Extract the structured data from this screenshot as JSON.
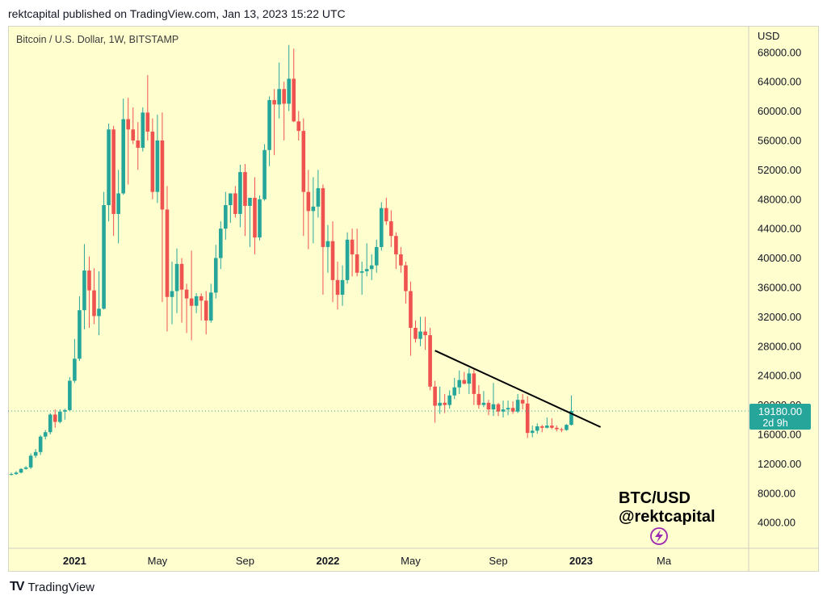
{
  "header": {
    "text": "rektcapital published on TradingView.com, Jan 13, 2023 15:22 UTC"
  },
  "footer": {
    "brand": "TradingView",
    "logo_icon": "tradingview-logo-icon"
  },
  "colors": {
    "up": "#26a69a",
    "down": "#ef5350",
    "background": "#fffecf",
    "price_tag": "#26a69a",
    "trendline": "#000000"
  },
  "chart_data": {
    "type": "candlestick",
    "title": "Bitcoin / U.S. Dollar, 1W, BITSTAMP",
    "currency_label": "USD",
    "yticks": [
      4000,
      8000,
      12000,
      16000,
      20000,
      24000,
      28000,
      32000,
      36000,
      40000,
      44000,
      48000,
      52000,
      56000,
      60000,
      64000,
      68000
    ],
    "ytick_labels": [
      "4000.00",
      "8000.00",
      "12000.00",
      "16000.00",
      "20000.00",
      "24000.00",
      "28000.00",
      "32000.00",
      "36000.00",
      "40000.00",
      "44000.00",
      "48000.00",
      "52000.00",
      "56000.00",
      "60000.00",
      "64000.00",
      "68000.00"
    ],
    "ylim": [
      500,
      71600
    ],
    "x_tick_labels": [
      {
        "label": "2021",
        "bold": true,
        "index": 13
      },
      {
        "label": "May",
        "bold": false,
        "index": 30
      },
      {
        "label": "Sep",
        "bold": false,
        "index": 48
      },
      {
        "label": "2022",
        "bold": true,
        "index": 65
      },
      {
        "label": "May",
        "bold": false,
        "index": 82
      },
      {
        "label": "Sep",
        "bold": false,
        "index": 100
      },
      {
        "label": "2023",
        "bold": true,
        "index": 117
      },
      {
        "label": "Ma",
        "bold": false,
        "index": 134
      }
    ],
    "last_price": {
      "value": 19180,
      "label": "19180.00",
      "countdown": "2d 9h"
    },
    "trendline": {
      "start": {
        "index": 87,
        "price": 27400
      },
      "end": {
        "index": 121,
        "price": 17000
      }
    },
    "annotation": {
      "line1": "BTC/USD",
      "line2": "@rektcapital",
      "icon": "lightning-badge-icon"
    },
    "candles": [
      [
        10600,
        10800,
        10400,
        10600
      ],
      [
        10600,
        11000,
        10500,
        10800
      ],
      [
        10800,
        11400,
        10700,
        11300
      ],
      [
        11300,
        11700,
        11200,
        11500
      ],
      [
        11500,
        13400,
        11300,
        13100
      ],
      [
        13100,
        14000,
        12800,
        13600
      ],
      [
        13600,
        15900,
        13200,
        15700
      ],
      [
        15700,
        16600,
        15300,
        16300
      ],
      [
        16300,
        18900,
        16000,
        18700
      ],
      [
        18700,
        19400,
        16900,
        17700
      ],
      [
        17700,
        19400,
        17500,
        19100
      ],
      [
        19100,
        19500,
        18000,
        19300
      ],
      [
        19300,
        23800,
        19200,
        23300
      ],
      [
        23300,
        29000,
        23000,
        26300
      ],
      [
        26300,
        34800,
        26000,
        32900
      ],
      [
        32900,
        41900,
        30300,
        38300
      ],
      [
        38300,
        40200,
        30500,
        35600
      ],
      [
        35600,
        38600,
        31000,
        32100
      ],
      [
        32100,
        38200,
        29500,
        33100
      ],
      [
        33100,
        49000,
        33000,
        47200
      ],
      [
        47200,
        58300,
        45000,
        57500
      ],
      [
        57500,
        58000,
        43000,
        46000
      ],
      [
        46000,
        52000,
        42000,
        48800
      ],
      [
        48800,
        61700,
        48600,
        58900
      ],
      [
        58900,
        61800,
        50000,
        57500
      ],
      [
        57500,
        60500,
        55500,
        56000
      ],
      [
        56000,
        58500,
        52000,
        55000
      ],
      [
        55000,
        60500,
        54500,
        59800
      ],
      [
        59800,
        64900,
        56000,
        57200
      ],
      [
        57200,
        59000,
        48000,
        49000
      ],
      [
        49000,
        59500,
        47500,
        56000
      ],
      [
        56000,
        59800,
        34000,
        46600
      ],
      [
        46600,
        49800,
        30000,
        34700
      ],
      [
        34700,
        39500,
        31000,
        35500
      ],
      [
        35500,
        41300,
        32500,
        39200
      ],
      [
        39200,
        40000,
        31200,
        35700
      ],
      [
        35700,
        36500,
        29800,
        34500
      ],
      [
        34500,
        41000,
        28800,
        33500
      ],
      [
        33500,
        35200,
        32500,
        34800
      ],
      [
        34800,
        35200,
        31500,
        34200
      ],
      [
        34200,
        35500,
        29600,
        31500
      ],
      [
        31500,
        36500,
        31200,
        35300
      ],
      [
        35300,
        41800,
        34500,
        40000
      ],
      [
        40000,
        45000,
        38500,
        44000
      ],
      [
        44000,
        49000,
        42500,
        47200
      ],
      [
        47200,
        48500,
        44800,
        48800
      ],
      [
        48800,
        49800,
        45500,
        46000
      ],
      [
        46000,
        52700,
        44200,
        51700
      ],
      [
        51700,
        52800,
        43000,
        47100
      ],
      [
        47100,
        48000,
        41500,
        48200
      ],
      [
        48200,
        51000,
        40500,
        42800
      ],
      [
        42800,
        48500,
        42400,
        48000
      ],
      [
        48000,
        55500,
        47800,
        54700
      ],
      [
        54700,
        62000,
        52500,
        61500
      ],
      [
        61500,
        63000,
        54000,
        60900
      ],
      [
        60900,
        66600,
        59000,
        63000
      ],
      [
        63000,
        64000,
        56000,
        61000
      ],
      [
        61000,
        69000,
        60000,
        64400
      ],
      [
        64400,
        68500,
        58500,
        58600
      ],
      [
        58600,
        60000,
        56000,
        57300
      ],
      [
        57300,
        59000,
        43000,
        49000
      ],
      [
        49000,
        52000,
        41200,
        46400
      ],
      [
        46400,
        51000,
        42000,
        47000
      ],
      [
        47000,
        52000,
        45500,
        49500
      ],
      [
        49500,
        50000,
        35000,
        41500
      ],
      [
        41500,
        44500,
        38000,
        42300
      ],
      [
        42300,
        45000,
        34000,
        37000
      ],
      [
        37000,
        39500,
        33000,
        35000
      ],
      [
        35000,
        39000,
        33500,
        37000
      ],
      [
        37000,
        43500,
        36500,
        42500
      ],
      [
        42500,
        44000,
        37500,
        40500
      ],
      [
        40500,
        44000,
        37500,
        38000
      ],
      [
        38000,
        39500,
        35000,
        38200
      ],
      [
        38200,
        42000,
        37500,
        38500
      ],
      [
        38500,
        40500,
        37000,
        39000
      ],
      [
        39000,
        42500,
        38000,
        41500
      ],
      [
        41500,
        47600,
        41000,
        46800
      ],
      [
        46800,
        48200,
        44500,
        45000
      ],
      [
        45000,
        46500,
        41500,
        43000
      ],
      [
        43000,
        43500,
        38500,
        40500
      ],
      [
        40500,
        41500,
        38000,
        39000
      ],
      [
        39000,
        39500,
        33800,
        35500
      ],
      [
        35500,
        36800,
        26700,
        30500
      ],
      [
        30500,
        31500,
        28500,
        29000
      ],
      [
        29000,
        32000,
        28000,
        30000
      ],
      [
        30000,
        32000,
        27500,
        29500
      ],
      [
        29500,
        30500,
        22000,
        22500
      ],
      [
        22500,
        23300,
        17600,
        19900
      ],
      [
        19900,
        22500,
        18800,
        20300
      ],
      [
        20300,
        21500,
        18900,
        20000
      ],
      [
        20000,
        22000,
        19500,
        21300
      ],
      [
        21300,
        23700,
        20800,
        22400
      ],
      [
        22400,
        24700,
        21500,
        23400
      ],
      [
        23400,
        24500,
        22800,
        22900
      ],
      [
        22900,
        25000,
        21500,
        24300
      ],
      [
        24300,
        24900,
        20000,
        21500
      ],
      [
        21500,
        22700,
        19500,
        20000
      ],
      [
        20000,
        21900,
        19700,
        20300
      ],
      [
        20300,
        20700,
        18600,
        19400
      ],
      [
        19400,
        23000,
        18500,
        20100
      ],
      [
        20100,
        20300,
        18500,
        19100
      ],
      [
        19100,
        20600,
        18300,
        19400
      ],
      [
        19400,
        20600,
        18600,
        19600
      ],
      [
        19600,
        20500,
        18800,
        19100
      ],
      [
        19100,
        21500,
        18900,
        20700
      ],
      [
        20700,
        21500,
        19400,
        20200
      ],
      [
        20200,
        21200,
        15500,
        16200
      ],
      [
        16200,
        17200,
        15600,
        16500
      ],
      [
        16500,
        17500,
        16100,
        17100
      ],
      [
        17100,
        17300,
        16300,
        16900
      ],
      [
        16900,
        18300,
        16800,
        17200
      ],
      [
        17200,
        18200,
        16700,
        16900
      ],
      [
        16900,
        17200,
        16400,
        16700
      ],
      [
        16700,
        16900,
        16300,
        16600
      ],
      [
        16600,
        17400,
        16500,
        17300
      ],
      [
        17300,
        21300,
        17200,
        19180
      ]
    ]
  }
}
